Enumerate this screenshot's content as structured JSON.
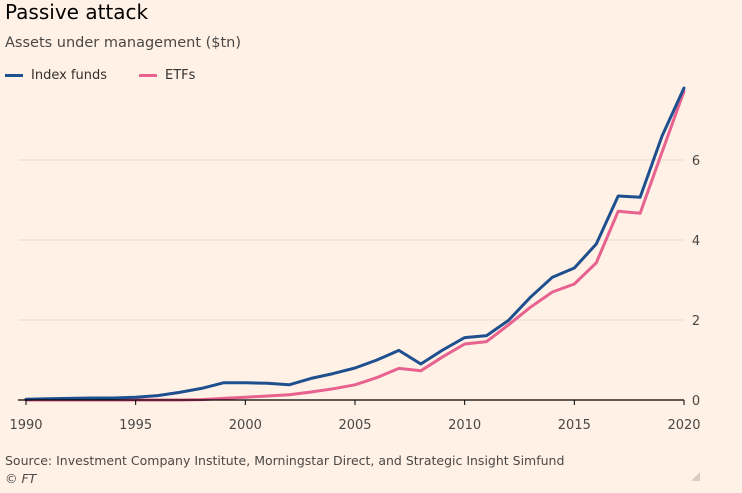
{
  "chart_data": {
    "type": "line",
    "title": "Passive attack",
    "subtitle": "Assets under management ($tn)",
    "xlabel": "",
    "ylabel": "",
    "x": [
      1990,
      1991,
      1992,
      1993,
      1994,
      1995,
      1996,
      1997,
      1998,
      1999,
      2000,
      2001,
      2002,
      2003,
      2004,
      2005,
      2006,
      2007,
      2008,
      2009,
      2010,
      2011,
      2012,
      2013,
      2014,
      2015,
      2016,
      2017,
      2018,
      2019,
      2020
    ],
    "series": [
      {
        "name": "Index funds",
        "color": "#1e4f8e",
        "values": [
          0.02,
          0.03,
          0.04,
          0.05,
          0.05,
          0.07,
          0.11,
          0.19,
          0.29,
          0.43,
          0.43,
          0.42,
          0.38,
          0.54,
          0.66,
          0.8,
          1.0,
          1.24,
          0.9,
          1.25,
          1.56,
          1.61,
          1.99,
          2.57,
          3.07,
          3.3,
          3.9,
          5.1,
          5.07,
          6.6,
          7.8
        ]
      },
      {
        "name": "ETFs",
        "color": "#e8628f",
        "values": [
          0.0,
          0.0,
          0.0,
          0.0,
          0.0,
          0.0,
          0.0,
          0.0,
          0.01,
          0.04,
          0.07,
          0.1,
          0.13,
          0.2,
          0.28,
          0.38,
          0.56,
          0.79,
          0.73,
          1.08,
          1.4,
          1.46,
          1.88,
          2.32,
          2.7,
          2.9,
          3.43,
          4.72,
          4.67,
          6.2,
          7.72
        ]
      }
    ],
    "x_ticks": [
      1990,
      1995,
      2000,
      2005,
      2010,
      2015,
      2020
    ],
    "y_ticks": [
      0,
      2,
      4,
      6
    ],
    "xlim": [
      1990,
      2020
    ],
    "ylim": [
      0,
      8
    ],
    "grid": true,
    "legend_position": "top-left",
    "y_axis_side": "right"
  },
  "footer": {
    "source": "Source: Investment Company Institute, Morningstar Direct, and Strategic Insight Simfund",
    "copyright": "© FT"
  },
  "colors": {
    "background": "#fff1e5",
    "gridline": "#e6d9ce",
    "baseline": "#000000",
    "tick_text": "#4a4846"
  }
}
